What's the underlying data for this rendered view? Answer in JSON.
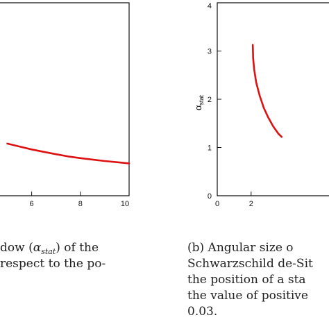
{
  "chart_data": [
    {
      "type": "line",
      "panel": "left",
      "series": [
        {
          "color": "#dd1111",
          "x": [
            5.0,
            5.5,
            6.0,
            6.5,
            7.0,
            7.5,
            8.0,
            8.5,
            9.0,
            9.5,
            10.0
          ],
          "values": [
            1.08,
            1.02,
            0.96,
            0.91,
            0.86,
            0.815,
            0.78,
            0.75,
            0.72,
            0.695,
            0.67
          ]
        }
      ],
      "x_ticks": [
        "6",
        "8",
        "10"
      ],
      "xlim": [
        4.7,
        10
      ],
      "ylim": [
        0,
        4
      ],
      "grid": false
    },
    {
      "type": "line",
      "panel": "right",
      "series": [
        {
          "color": "#dd1111",
          "x": [
            2.1,
            2.12,
            2.18,
            2.3,
            2.5,
            2.75,
            3.0,
            3.3,
            3.6,
            3.8
          ],
          "values": [
            3.13,
            2.85,
            2.62,
            2.35,
            2.08,
            1.82,
            1.63,
            1.44,
            1.29,
            1.22
          ]
        }
      ],
      "x_ticks": [
        "0",
        "2"
      ],
      "y_ticks": [
        "4",
        "3",
        "2",
        "1",
        "0"
      ],
      "ylabel_main": "α",
      "ylabel_sub": "stat",
      "xlim": [
        0,
        6.6
      ],
      "ylim": [
        0,
        4
      ],
      "grid": false
    }
  ],
  "captions": {
    "left": {
      "line1_start": "dow (",
      "line1_math": "α",
      "line1_sub": "stat",
      "line1_end": ") of the",
      "line2": "respect to the po-"
    },
    "right": {
      "line1": "(b) Angular size o",
      "line2": "Schwarzschild de-Sit",
      "line3": "the position of a sta",
      "line4": "the value of positive",
      "line5": "0.03."
    }
  }
}
